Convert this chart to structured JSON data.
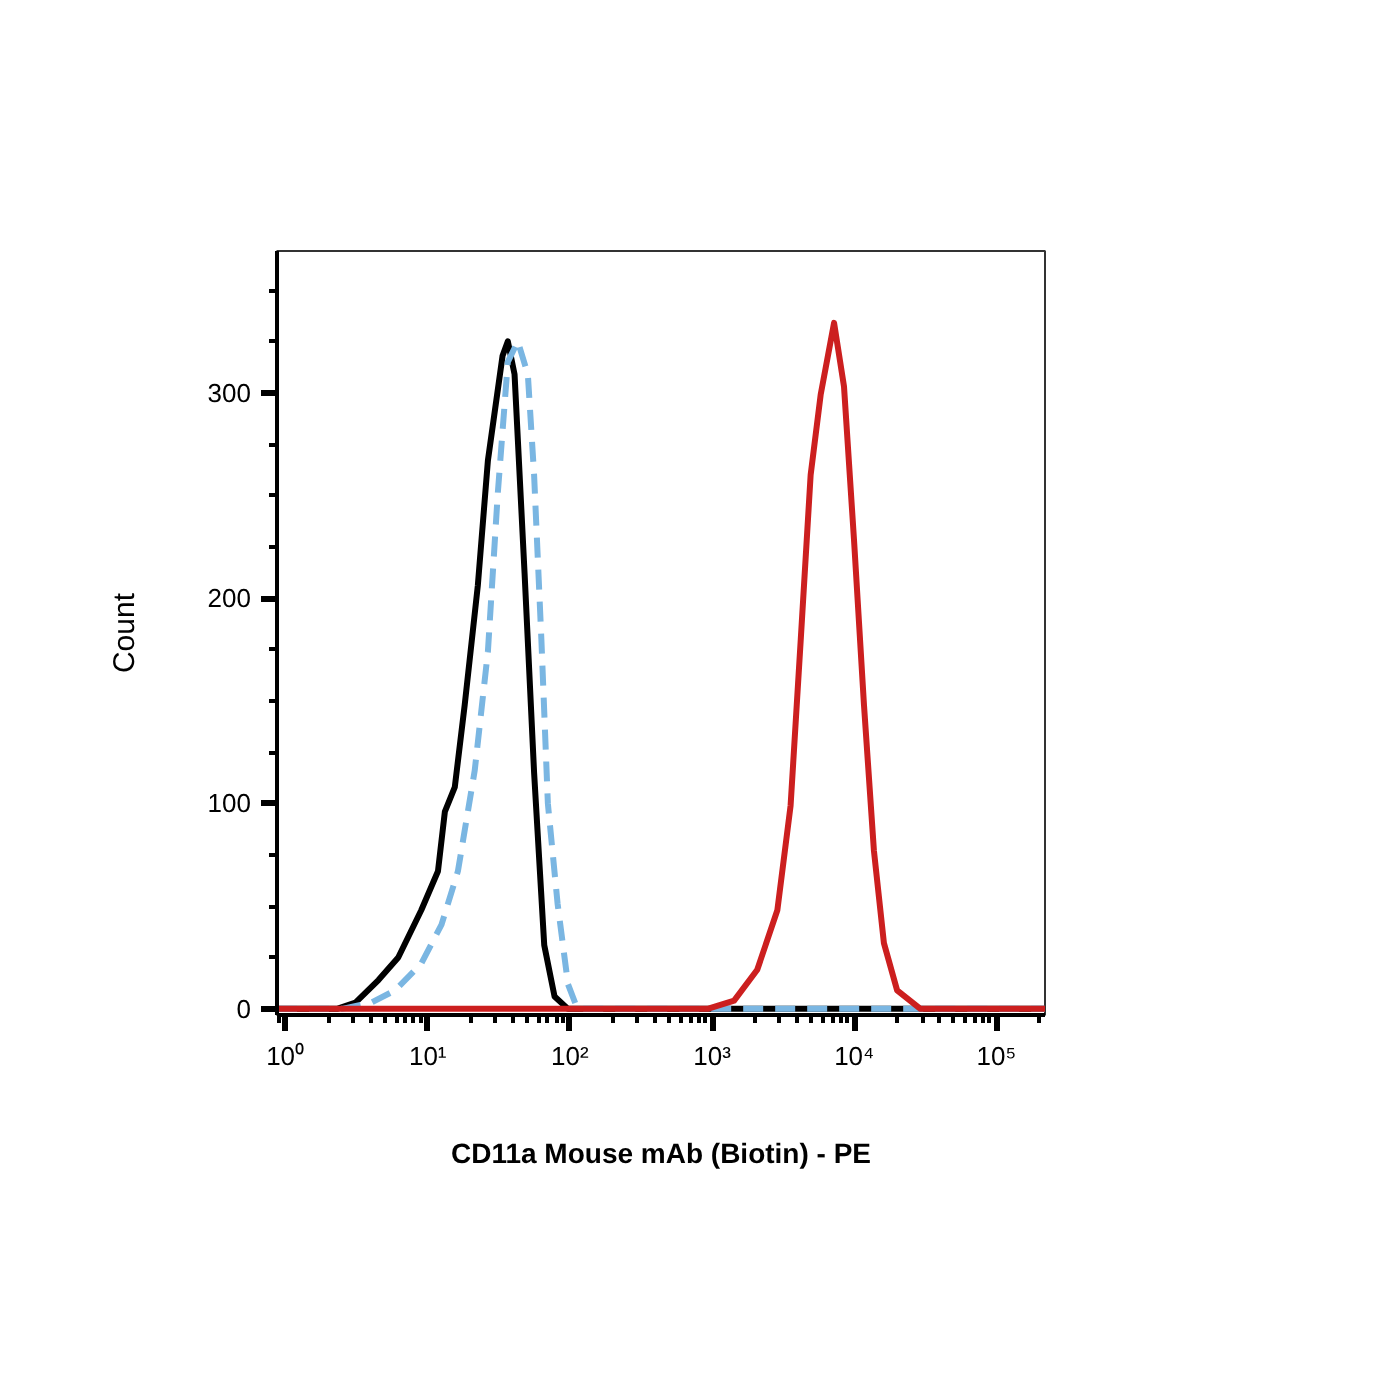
{
  "chart_data": {
    "type": "line",
    "xlabel": "CD11a Mouse mAb (Biotin) - PE",
    "ylabel": "Count",
    "log": "x",
    "grid": false,
    "marker": "none",
    "xlim": [
      0.87,
      220000
    ],
    "ylim": [
      -3,
      369
    ],
    "xticks": [
      {
        "value": 1,
        "label": "10⁰"
      },
      {
        "value": 10,
        "label": "10¹"
      },
      {
        "value": 100,
        "label": "10²"
      },
      {
        "value": 1000,
        "label": "10³"
      },
      {
        "value": 10000,
        "label": "10⁴"
      },
      {
        "value": 100000,
        "label": "10⁵"
      }
    ],
    "yticks": [
      0,
      100,
      200,
      300
    ],
    "series": [
      {
        "color": "#000000",
        "line_style": "solid",
        "x": [
          0.87,
          2.3,
          3.1,
          4.5,
          6.2,
          9.0,
          11.8,
          13.2,
          15.5,
          18.2,
          22.5,
          26.5,
          33.6,
          36.6,
          40.8,
          48,
          56,
          66,
          78,
          97,
          220000
        ],
        "values": [
          0,
          0,
          3,
          14,
          25,
          48,
          67,
          96,
          108,
          148,
          206,
          267,
          318,
          325,
          309,
          212,
          115,
          31,
          6,
          0,
          0
        ]
      },
      {
        "color": "#7ab6e2",
        "line_style": "dashed",
        "x": [
          0.87,
          2.5,
          4.0,
          5.9,
          9.0,
          12.5,
          16.3,
          21.4,
          26.5,
          31.1,
          36.6,
          43,
          50.6,
          56,
          63,
          70,
          82,
          97,
          113,
          220000
        ],
        "values": [
          0,
          0,
          3,
          9,
          22,
          41,
          67,
          116,
          174,
          251,
          315,
          325,
          309,
          260,
          180,
          100,
          51,
          12,
          0,
          0
        ]
      },
      {
        "color": "#cc1f1f",
        "line_style": "solid",
        "x": [
          0.87,
          930,
          1430,
          2080,
          2880,
          3570,
          4210,
          4940,
          5810,
          7220,
          8480,
          9980,
          11720,
          13770,
          16190,
          20050,
          29250,
          220000
        ],
        "values": [
          0,
          0,
          4,
          19,
          48,
          99,
          180,
          260,
          299,
          334,
          303,
          228,
          148,
          77,
          32,
          9,
          0,
          0
        ]
      }
    ]
  }
}
